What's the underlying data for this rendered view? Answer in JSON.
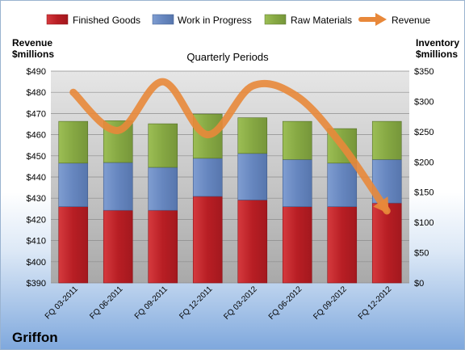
{
  "company": "Griffon",
  "chart_data": {
    "type": "bar",
    "title": "Quarterly Periods",
    "categories": [
      "FQ 03-2011",
      "FQ 06-2011",
      "FQ 09-2011",
      "FQ 12-2011",
      "FQ 03-2012",
      "FQ 06-2012",
      "FQ 09-2012",
      "FQ 12-2012"
    ],
    "stacked": true,
    "series": [
      {
        "name": "Finished Goods",
        "axis": "right",
        "color": "#c0262b",
        "values": [
          126,
          120,
          120,
          143,
          137,
          126,
          126,
          132
        ]
      },
      {
        "name": "Work in Progress",
        "axis": "right",
        "color": "#6f8fc5",
        "values": [
          72,
          79,
          71,
          63,
          77,
          78,
          72,
          72
        ]
      },
      {
        "name": "Raw Materials",
        "axis": "right",
        "color": "#8db048",
        "values": [
          69,
          69,
          72,
          73,
          59,
          63,
          57,
          63
        ]
      },
      {
        "name": "Revenue",
        "type": "line",
        "axis": "left",
        "color": "#e8883a",
        "values": [
          480,
          462,
          485,
          460,
          483,
          478,
          455,
          424
        ]
      }
    ],
    "left_axis": {
      "label_line1": "Revenue",
      "label_line2": "$millions",
      "ylim": [
        390,
        490
      ],
      "ticks": [
        "$390",
        "$400",
        "$410",
        "$420",
        "$430",
        "$440",
        "$450",
        "$460",
        "$470",
        "$480",
        "$490"
      ]
    },
    "right_axis": {
      "label_line1": "Inventory",
      "label_line2": "$millions",
      "ylim": [
        0,
        350
      ],
      "ticks": [
        "$0",
        "$50",
        "$100",
        "$150",
        "$200",
        "$250",
        "$300",
        "$350"
      ]
    },
    "legend": "top",
    "grid": true
  }
}
